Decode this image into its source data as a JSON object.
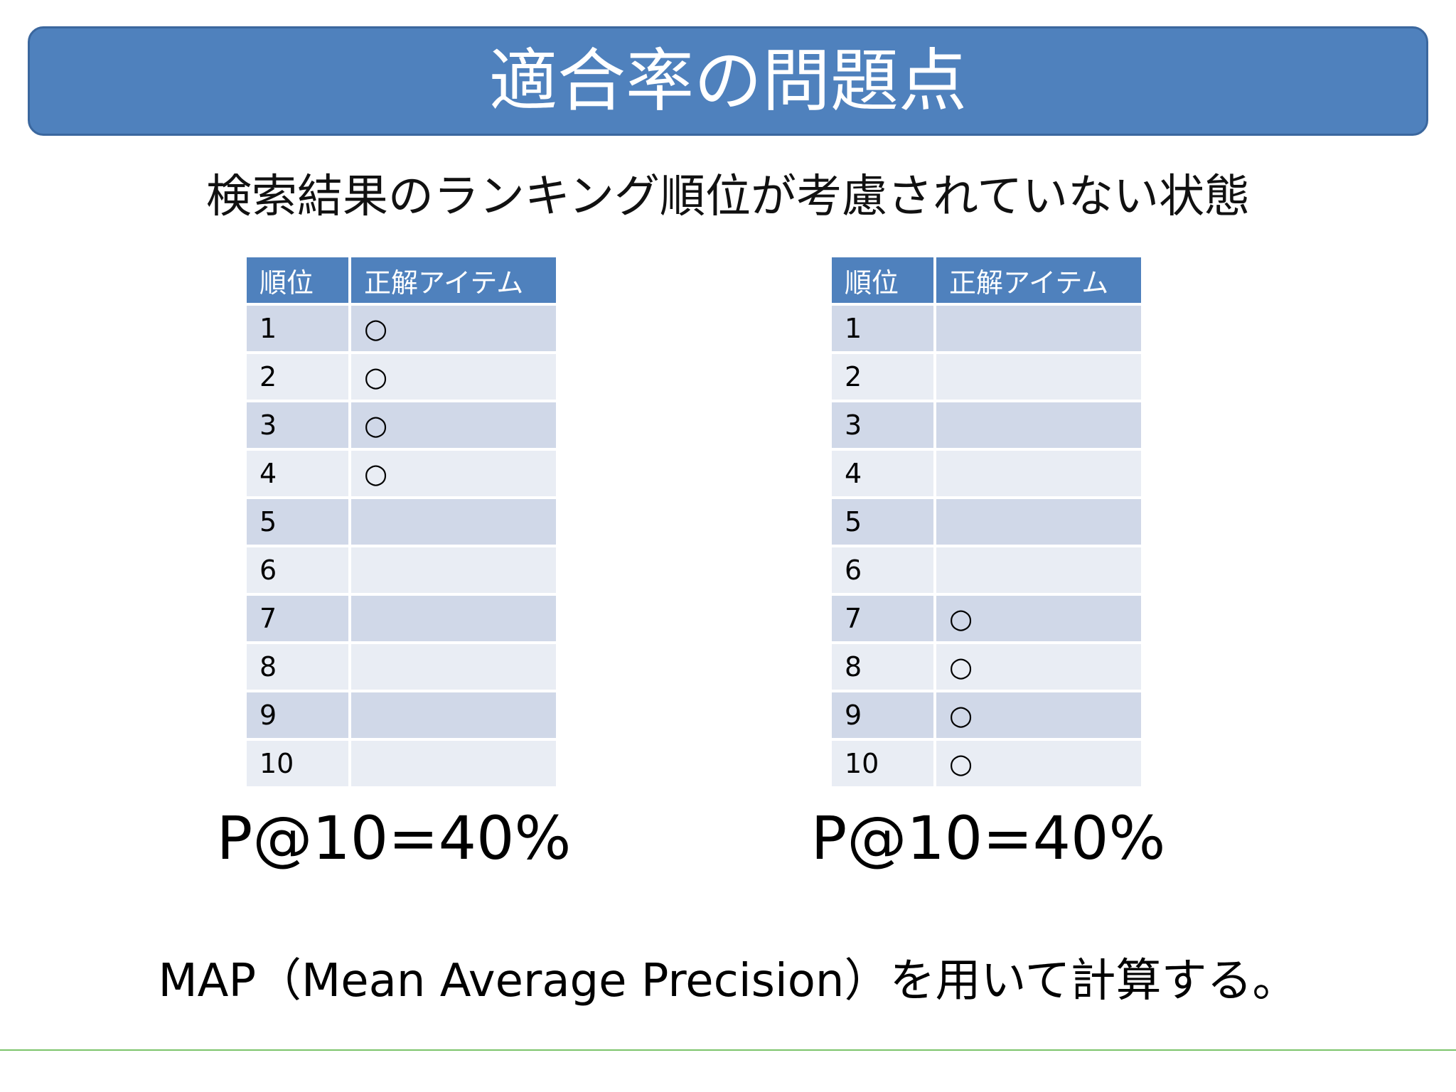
{
  "header": {
    "title": "適合率の問題点"
  },
  "subtitle": "検索結果のランキング順位が考慮されていない状態",
  "tables": [
    {
      "header": [
        "順位",
        "正解アイテム"
      ],
      "rows": [
        [
          "1",
          "○"
        ],
        [
          "2",
          "○"
        ],
        [
          "3",
          "○"
        ],
        [
          "4",
          "○"
        ],
        [
          "5"
        ],
        [
          "6"
        ],
        [
          "7"
        ],
        [
          "8"
        ],
        [
          "9"
        ],
        [
          "10"
        ]
      ],
      "caption": "P@10=40%"
    },
    {
      "header": [
        "順位",
        "正解アイテム"
      ],
      "rows": [
        [
          "1"
        ],
        [
          "2"
        ],
        [
          "3"
        ],
        [
          "4"
        ],
        [
          "5"
        ],
        [
          "6"
        ],
        [
          "7",
          "○"
        ],
        [
          "8",
          "○"
        ],
        [
          "9",
          "○"
        ],
        [
          "10",
          "○"
        ]
      ],
      "caption": "P@10=40%"
    }
  ],
  "footer": "MAP（Mean Average Precision）を用いて計算する。"
}
